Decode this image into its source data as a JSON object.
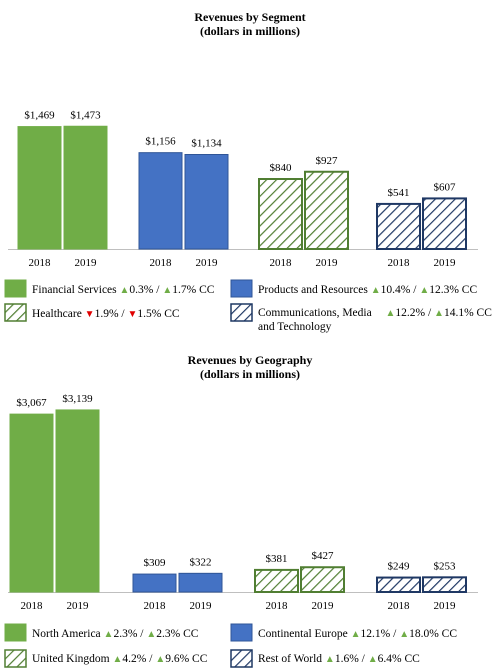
{
  "colors": {
    "green": "#70ad47",
    "green_dark": "#507e32",
    "blue": "#4472c4",
    "blue_dark": "#2f5597",
    "navy": "#1f3864",
    "up": "#70ad47",
    "down": "#e00000"
  },
  "chart_data": [
    {
      "type": "bar",
      "title": "Revenues by Segment",
      "subtitle": "(dollars in millions)",
      "categories": [
        "Financial Services",
        "Healthcare",
        "Products and Resources",
        "Communications, Media and Technology"
      ],
      "x_ticks": [
        "2018",
        "2019"
      ],
      "series": [
        {
          "name": "2018",
          "values": [
            1469,
            1156,
            840,
            541
          ],
          "labels": [
            "$1,469",
            "$1,156",
            "$840",
            "$541"
          ]
        },
        {
          "name": "2019",
          "values": [
            1473,
            1134,
            927,
            607
          ],
          "labels": [
            "$1,473",
            "$1,134",
            "$927",
            "$607"
          ]
        }
      ],
      "ylim": [
        0,
        1800
      ],
      "grid": false,
      "legend": [
        {
          "label": "Financial Services",
          "growth": [
            {
              "dir": "up",
              "text": "0.3% /"
            },
            {
              "dir": "up",
              "text": "1.7% CC"
            }
          ]
        },
        {
          "label": "Products and Resources",
          "growth": [
            {
              "dir": "up",
              "text": "10.4% /"
            },
            {
              "dir": "up",
              "text": "12.3% CC"
            }
          ]
        },
        {
          "label": "Healthcare",
          "growth": [
            {
              "dir": "down",
              "text": "1.9% /"
            },
            {
              "dir": "down",
              "text": "1.5% CC"
            }
          ]
        },
        {
          "label": "Communications, Media",
          "label2": "and Technology",
          "growth": [
            {
              "dir": "up",
              "text": "12.2% /"
            },
            {
              "dir": "up",
              "text": "14.1% CC"
            }
          ]
        }
      ]
    },
    {
      "type": "bar",
      "title": "Revenues by Geography",
      "subtitle": "(dollars in millions)",
      "categories": [
        "North America",
        "United Kingdom",
        "Continental Europe",
        "Rest of World"
      ],
      "x_ticks": [
        "2018",
        "2019"
      ],
      "series": [
        {
          "name": "2018",
          "values": [
            3067,
            309,
            381,
            249
          ],
          "labels": [
            "$3,067",
            "$309",
            "$381",
            "$249"
          ]
        },
        {
          "name": "2019",
          "values": [
            3139,
            322,
            427,
            253
          ],
          "labels": [
            "$3,139",
            "$322",
            "$427",
            "$253"
          ]
        }
      ],
      "ylim": [
        0,
        3500
      ],
      "grid": false,
      "legend": [
        {
          "label": "North America",
          "growth": [
            {
              "dir": "up",
              "text": "2.3% /"
            },
            {
              "dir": "up",
              "text": "2.3% CC"
            }
          ]
        },
        {
          "label": "Continental Europe",
          "growth": [
            {
              "dir": "up",
              "text": "12.1% /"
            },
            {
              "dir": "up",
              "text": "18.0% CC"
            }
          ]
        },
        {
          "label": "United Kingdom",
          "growth": [
            {
              "dir": "up",
              "text": "4.2% /"
            },
            {
              "dir": "up",
              "text": "9.6% CC"
            }
          ]
        },
        {
          "label": "Rest of World",
          "growth": [
            {
              "dir": "up",
              "text": "1.6% /"
            },
            {
              "dir": "up",
              "text": "6.4% CC"
            }
          ]
        }
      ]
    }
  ]
}
